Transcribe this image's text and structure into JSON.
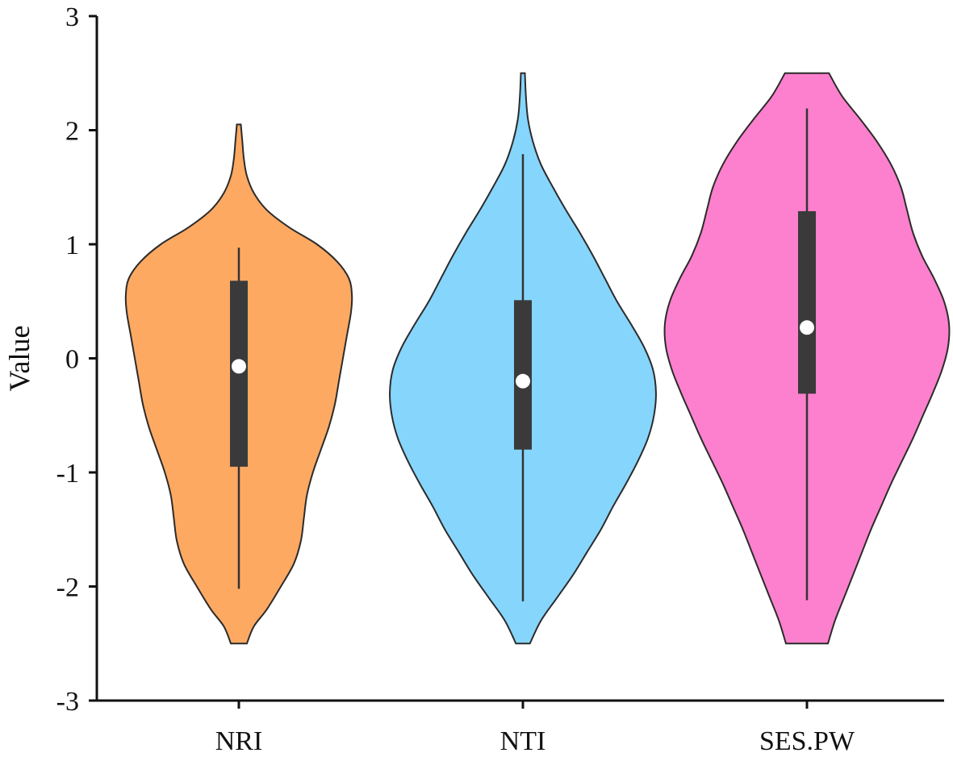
{
  "chart_data": {
    "type": "violin",
    "xlabel": "",
    "ylabel": "Value",
    "ylim": [
      -3,
      3
    ],
    "yticks": [
      "3",
      "2",
      "1",
      "0",
      "-1",
      "-2",
      "-3"
    ],
    "grid": false,
    "categories": [
      "NRI",
      "NTI",
      "SES.PW"
    ],
    "series": [
      {
        "category": "NRI",
        "color": "#fda962",
        "range": [
          -2.5,
          2.05
        ],
        "whisker": [
          -2.02,
          0.97
        ],
        "q1": -0.95,
        "q3": 0.68,
        "median": -0.07,
        "density_profile": [
          [
            -2.5,
            0.08
          ],
          [
            -2.35,
            0.15
          ],
          [
            -2.2,
            0.28
          ],
          [
            -2.0,
            0.42
          ],
          [
            -1.8,
            0.55
          ],
          [
            -1.6,
            0.62
          ],
          [
            -1.4,
            0.65
          ],
          [
            -1.2,
            0.68
          ],
          [
            -1.0,
            0.74
          ],
          [
            -0.8,
            0.82
          ],
          [
            -0.6,
            0.9
          ],
          [
            -0.4,
            0.96
          ],
          [
            -0.2,
            1.0
          ],
          [
            0.0,
            1.04
          ],
          [
            0.2,
            1.08
          ],
          [
            0.4,
            1.12
          ],
          [
            0.55,
            1.13
          ],
          [
            0.7,
            1.1
          ],
          [
            0.85,
            0.98
          ],
          [
            1.0,
            0.78
          ],
          [
            1.15,
            0.5
          ],
          [
            1.3,
            0.28
          ],
          [
            1.45,
            0.15
          ],
          [
            1.6,
            0.08
          ],
          [
            1.75,
            0.05
          ],
          [
            1.9,
            0.035
          ],
          [
            2.05,
            0.02
          ]
        ]
      },
      {
        "category": "NTI",
        "color": "#86d5fc",
        "range": [
          -2.5,
          2.5
        ],
        "whisker": [
          -2.13,
          1.79
        ],
        "q1": -0.8,
        "q3": 0.51,
        "median": -0.2,
        "density_profile": [
          [
            -2.5,
            0.07
          ],
          [
            -2.3,
            0.18
          ],
          [
            -2.1,
            0.34
          ],
          [
            -1.9,
            0.5
          ],
          [
            -1.7,
            0.64
          ],
          [
            -1.5,
            0.78
          ],
          [
            -1.3,
            0.9
          ],
          [
            -1.1,
            1.03
          ],
          [
            -0.9,
            1.15
          ],
          [
            -0.7,
            1.25
          ],
          [
            -0.5,
            1.31
          ],
          [
            -0.3,
            1.33
          ],
          [
            -0.1,
            1.3
          ],
          [
            0.1,
            1.21
          ],
          [
            0.3,
            1.08
          ],
          [
            0.5,
            0.94
          ],
          [
            0.7,
            0.82
          ],
          [
            0.9,
            0.7
          ],
          [
            1.1,
            0.57
          ],
          [
            1.3,
            0.43
          ],
          [
            1.5,
            0.3
          ],
          [
            1.7,
            0.18
          ],
          [
            1.9,
            0.1
          ],
          [
            2.1,
            0.05
          ],
          [
            2.3,
            0.03
          ],
          [
            2.5,
            0.02
          ]
        ]
      },
      {
        "category": "SES.PW",
        "color": "#fc80cd",
        "range": [
          -2.5,
          2.5
        ],
        "whisker": [
          -2.12,
          2.19
        ],
        "q1": -0.31,
        "q3": 1.29,
        "median": 0.27,
        "density_profile": [
          [
            -2.5,
            0.21
          ],
          [
            -2.3,
            0.28
          ],
          [
            -2.1,
            0.37
          ],
          [
            -1.9,
            0.46
          ],
          [
            -1.7,
            0.55
          ],
          [
            -1.5,
            0.64
          ],
          [
            -1.3,
            0.74
          ],
          [
            -1.1,
            0.84
          ],
          [
            -0.9,
            0.95
          ],
          [
            -0.7,
            1.06
          ],
          [
            -0.5,
            1.16
          ],
          [
            -0.3,
            1.26
          ],
          [
            -0.1,
            1.35
          ],
          [
            0.1,
            1.41
          ],
          [
            0.3,
            1.42
          ],
          [
            0.5,
            1.37
          ],
          [
            0.7,
            1.27
          ],
          [
            0.9,
            1.15
          ],
          [
            1.1,
            1.06
          ],
          [
            1.3,
            1.0
          ],
          [
            1.5,
            0.94
          ],
          [
            1.7,
            0.84
          ],
          [
            1.9,
            0.7
          ],
          [
            2.1,
            0.53
          ],
          [
            2.3,
            0.35
          ],
          [
            2.5,
            0.22
          ]
        ]
      }
    ]
  }
}
